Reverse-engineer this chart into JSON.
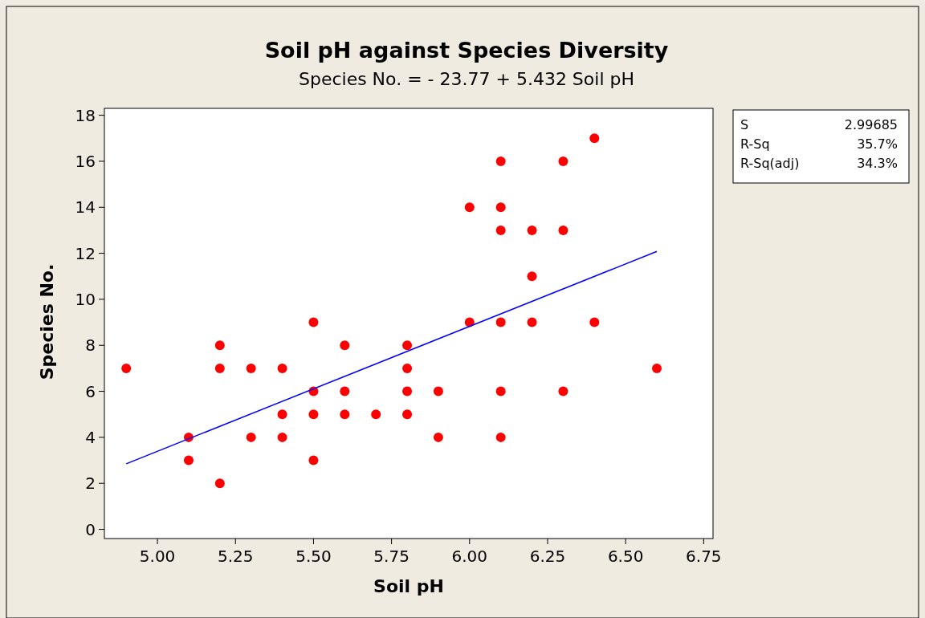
{
  "chart_data": {
    "type": "scatter",
    "title": "Soil pH against Species Diversity",
    "subtitle": "Species No. =  - 23.77 + 5.432 Soil pH",
    "xlabel": "Soil pH",
    "ylabel": "Species No.",
    "xlim": [
      4.83,
      6.78
    ],
    "ylim": [
      -0.4,
      18.3
    ],
    "xticks": [
      {
        "value": 5,
        "label": "5.00"
      },
      {
        "value": 5.25,
        "label": "5.25"
      },
      {
        "value": 5.5,
        "label": "5.50"
      },
      {
        "value": 5.75,
        "label": "5.75"
      },
      {
        "value": 6,
        "label": "6.00"
      },
      {
        "value": 6.25,
        "label": "6.25"
      },
      {
        "value": 6.5,
        "label": "6.50"
      },
      {
        "value": 6.75,
        "label": "6.75"
      }
    ],
    "yticks": [
      0,
      2,
      4,
      6,
      8,
      10,
      12,
      14,
      16,
      18
    ],
    "grid": false,
    "marker": "circle",
    "annotations": [
      "S 2.99685",
      "R-Sq 35.7%",
      "R-Sq(adj) 34.3%"
    ],
    "series": [
      {
        "color": "#ff0000",
        "x": [
          4.9,
          5.1,
          5.1,
          5.2,
          5.2,
          5.2,
          5.3,
          5.3,
          5.4,
          5.4,
          5.4,
          5.5,
          5.5,
          5.5,
          5.5,
          5.6,
          5.6,
          5.6,
          5.7,
          5.8,
          5.8,
          5.8,
          5.8,
          5.9,
          5.9,
          6.0,
          6.0,
          6.1,
          6.1,
          6.1,
          6.1,
          6.1,
          6.1,
          6.2,
          6.2,
          6.2,
          6.3,
          6.3,
          6.3,
          6.4,
          6.4,
          6.6
        ],
        "values": [
          7,
          4,
          3,
          8,
          7,
          2,
          7,
          4,
          7,
          5,
          4,
          9,
          6,
          5,
          3,
          8,
          6,
          5,
          5,
          8,
          7,
          6,
          5,
          6,
          4,
          14,
          9,
          16,
          14,
          13,
          9,
          6,
          4,
          13,
          11,
          9,
          16,
          13,
          6,
          17,
          9,
          7
        ]
      },
      {
        "type": "line",
        "color": "#0000ff",
        "marker": "none",
        "line_style": "solid",
        "x": [
          4.9,
          6.6
        ],
        "values": [
          2.85,
          12.08
        ]
      }
    ]
  }
}
